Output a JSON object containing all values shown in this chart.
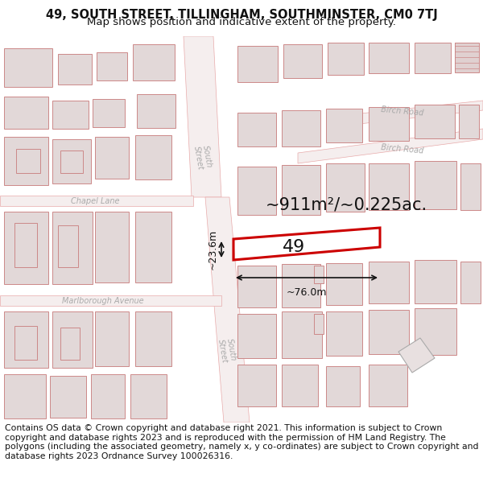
{
  "title_line1": "49, SOUTH STREET, TILLINGHAM, SOUTHMINSTER, CM0 7TJ",
  "title_line2": "Map shows position and indicative extent of the property.",
  "footer_text": "Contains OS data © Crown copyright and database right 2021. This information is subject to Crown copyright and database rights 2023 and is reproduced with the permission of HM Land Registry. The polygons (including the associated geometry, namely x, y co-ordinates) are subject to Crown copyright and database rights 2023 Ordnance Survey 100026316.",
  "map_bg": "#f7f0f0",
  "road_color": "#e8aaaa",
  "building_fill": "#e2d8d8",
  "building_edge": "#cc8888",
  "highlight_edge": "#cc0000",
  "highlight_lw": 2.2,
  "measure_color": "#111111",
  "area_text": "~911m²/~0.225ac.",
  "number_text": "49",
  "width_text": "~76.0m",
  "height_text": "~23.6m",
  "title_fontsize": 10.5,
  "subtitle_fontsize": 9.5,
  "footer_fontsize": 7.8,
  "road_label_color": "#aaaaaa",
  "road_label_size": 7.0
}
